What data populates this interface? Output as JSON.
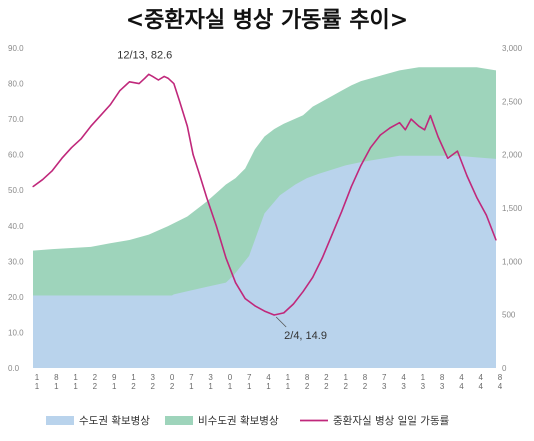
{
  "chart_data": {
    "type": "area",
    "title": "<중환자실 병상 가동률 추이>",
    "y_left": {
      "ticks": [
        "90.0",
        "80.0",
        "70.0",
        "60.0",
        "50.0",
        "40.0",
        "30.0",
        "20.0",
        "10.0",
        "0.0"
      ],
      "range": [
        0,
        90
      ]
    },
    "y_right": {
      "ticks": [
        "3,000",
        "2,500",
        "2,000",
        "1,500",
        "1,000",
        "500",
        "0"
      ],
      "range": [
        0,
        3000
      ]
    },
    "x_ticks": [
      [
        "1",
        "1"
      ],
      [
        "8",
        "1"
      ],
      [
        "1",
        "1"
      ],
      [
        "2",
        "2"
      ],
      [
        "9",
        "1"
      ],
      [
        "1",
        "2"
      ],
      [
        "3",
        "2"
      ],
      [
        "0",
        "2"
      ],
      [
        "7",
        "1"
      ],
      [
        "3",
        "1"
      ],
      [
        "0",
        "1"
      ],
      [
        "7",
        "1"
      ],
      [
        "4",
        "1"
      ],
      [
        "1",
        "1"
      ],
      [
        "8",
        "2"
      ],
      [
        "2",
        "2"
      ],
      [
        "1",
        "2"
      ],
      [
        "8",
        "2"
      ],
      [
        "7",
        "3"
      ],
      [
        "4",
        "3"
      ],
      [
        "1",
        "3"
      ],
      [
        "8",
        "3"
      ],
      [
        "4",
        "4"
      ],
      [
        "4",
        "4"
      ],
      [
        "8",
        "4"
      ]
    ],
    "x_index_count": 25,
    "series": [
      {
        "name": "수도권 확보병상",
        "color": "#b9d3ec",
        "axis": "right",
        "x": [
          0,
          7.2,
          7.3,
          8.0,
          9.0,
          10.0,
          10.4,
          10.8,
          11.2,
          11.6,
          12.0,
          12.8,
          13.6,
          14.2,
          14.8,
          15.5,
          16.2,
          17.0,
          18.0,
          19.0,
          20.0,
          21.0,
          22.0,
          23.0,
          24.0
        ],
        "values": [
          680,
          680,
          690,
          720,
          760,
          800,
          870,
          960,
          1050,
          1250,
          1450,
          1620,
          1720,
          1780,
          1820,
          1860,
          1900,
          1930,
          1960,
          1990,
          1990,
          1990,
          1990,
          1975,
          1960
        ]
      },
      {
        "name": "비수도권 확보병상",
        "color": "#9ed4bb",
        "axis": "right",
        "x": [
          0,
          1.0,
          2.0,
          3.0,
          4.0,
          5.0,
          6.0,
          7.0,
          8.0,
          9.0,
          9.5,
          10.0,
          10.5,
          11.0,
          11.5,
          12.0,
          12.5,
          13.0,
          13.5,
          14.0,
          14.5,
          15.0,
          15.5,
          16.0,
          16.5,
          17.0,
          18.0,
          19.0,
          20.0,
          21.0,
          22.0,
          23.0,
          24.0
        ],
        "values": [
          1100,
          1115,
          1125,
          1135,
          1170,
          1200,
          1250,
          1330,
          1420,
          1560,
          1640,
          1720,
          1780,
          1870,
          2050,
          2170,
          2240,
          2290,
          2330,
          2370,
          2450,
          2500,
          2550,
          2600,
          2650,
          2690,
          2740,
          2790,
          2820,
          2820,
          2820,
          2820,
          2790
        ]
      },
      {
        "name": "중환자실 병상 일일 가동률",
        "color": "#c0287b",
        "axis": "left",
        "x": [
          0,
          0.5,
          1.0,
          1.5,
          2.0,
          2.5,
          3.0,
          3.5,
          4.0,
          4.5,
          5.0,
          5.5,
          5.8,
          6.0,
          6.2,
          6.5,
          6.8,
          7.0,
          7.3,
          7.6,
          8.0,
          8.3,
          8.6,
          9.0,
          9.5,
          10.0,
          10.5,
          11.0,
          11.5,
          12.0,
          12.5,
          13.0,
          13.5,
          14.0,
          14.5,
          15.0,
          15.5,
          16.0,
          16.5,
          17.0,
          17.5,
          18.0,
          18.5,
          19.0,
          19.3,
          19.6,
          20.0,
          20.3,
          20.6,
          21.0,
          21.5,
          22.0,
          22.5,
          23.0,
          23.5,
          24.0
        ],
        "values": [
          51.0,
          53.0,
          55.5,
          59.0,
          62.0,
          64.5,
          68.0,
          71.0,
          74.0,
          78.0,
          80.5,
          80.0,
          81.5,
          82.6,
          82.0,
          81.0,
          82.0,
          81.5,
          80.0,
          75.0,
          68.0,
          60.0,
          55.0,
          48.0,
          40.0,
          31.0,
          24.0,
          19.5,
          17.5,
          16.0,
          14.9,
          15.5,
          18.0,
          21.5,
          25.5,
          31.0,
          37.5,
          44.0,
          51.0,
          57.0,
          62.0,
          65.5,
          67.5,
          69.0,
          67.0,
          70.0,
          68.0,
          67.0,
          71.0,
          65.0,
          59.0,
          61.0,
          54.0,
          48.0,
          43.0,
          36.0
        ]
      }
    ],
    "annotations": [
      {
        "text": "12/13, 82.6",
        "x": 6.0,
        "y": 82.6
      },
      {
        "text": "2/4, 14.9",
        "x": 12.5,
        "y": 14.9
      }
    ],
    "legend": {
      "placement": "bottom",
      "items": [
        {
          "label": "수도권 확보병상",
          "type": "box",
          "color": "#b9d3ec"
        },
        {
          "label": "비수도권 확보병상",
          "type": "box",
          "color": "#9ed4bb"
        },
        {
          "label": "중환자실 병상 일일 가동률",
          "type": "line",
          "color": "#c0287b"
        }
      ]
    },
    "grid": false
  }
}
